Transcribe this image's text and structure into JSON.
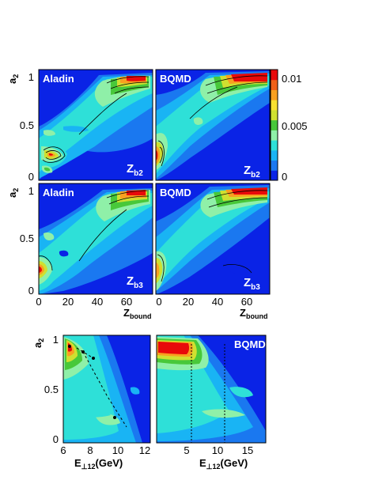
{
  "colors": {
    "scale": [
      "#0a23e6",
      "#1a78f0",
      "#19b4f4",
      "#2ee0d8",
      "#8ff0a8",
      "#48c83a",
      "#cfe030",
      "#f8e030",
      "#f8a020",
      "#f06018",
      "#e80a0a"
    ],
    "contour_line": "#000000",
    "label": "#ffffff",
    "dashed_line": "#000000"
  },
  "chart_data": [
    {
      "type": "heatmap",
      "label": "Aladin",
      "sublabel_main": "Z",
      "sublabel_sub": "b2",
      "ylabel_main": "a",
      "ylabel_sub": "2",
      "ylim": [
        0,
        1
      ],
      "yticks": [
        "0",
        "0.5",
        "1"
      ],
      "x_range": [
        0,
        78
      ]
    },
    {
      "type": "heatmap",
      "label": "BQMD",
      "sublabel_main": "Z",
      "sublabel_sub": "b2",
      "ylim": [
        0,
        1
      ],
      "x_range": [
        0,
        78
      ]
    },
    {
      "type": "heatmap",
      "label": "Aladin",
      "sublabel_main": "Z",
      "sublabel_sub": "b3",
      "ylabel_main": "a",
      "ylabel_sub": "2",
      "ylim": [
        0,
        1
      ],
      "yticks": [
        "0",
        "0.5",
        "1"
      ],
      "xticks": [
        "0",
        "20",
        "40",
        "60"
      ],
      "xlabel_main": "Z",
      "xlabel_sub": "bound",
      "x_range": [
        0,
        78
      ]
    },
    {
      "type": "heatmap",
      "label": "BQMD",
      "sublabel_main": "Z",
      "sublabel_sub": "b3",
      "xticks": [
        "0",
        "20",
        "40",
        "60"
      ],
      "xlabel_main": "Z",
      "xlabel_sub": "bound",
      "ylim": [
        0,
        1
      ],
      "x_range": [
        0,
        78
      ]
    },
    {
      "type": "heatmap",
      "ylabel_main": "a",
      "ylabel_sub": "2",
      "ylim": [
        0,
        1
      ],
      "yticks": [
        "0",
        "0.5",
        "1"
      ],
      "xticks": [
        "6",
        "8",
        "10",
        "12"
      ],
      "xlabel_main": "E",
      "xlabel_sub": "⊥12",
      "xlabel_unit": "(GeV)",
      "x_range": [
        6,
        12.4
      ]
    },
    {
      "type": "heatmap",
      "label": "BQMD",
      "xticks": [
        "5",
        "10",
        "15"
      ],
      "xlabel_main": "E",
      "xlabel_sub": "⊥12",
      "xlabel_unit": "(GeV)",
      "ylim": [
        0,
        1
      ],
      "x_range": [
        0,
        18
      ]
    }
  ],
  "colorbar": {
    "range": [
      0,
      0.012
    ],
    "ticks": [
      "0",
      "0.005",
      "0.01"
    ]
  }
}
